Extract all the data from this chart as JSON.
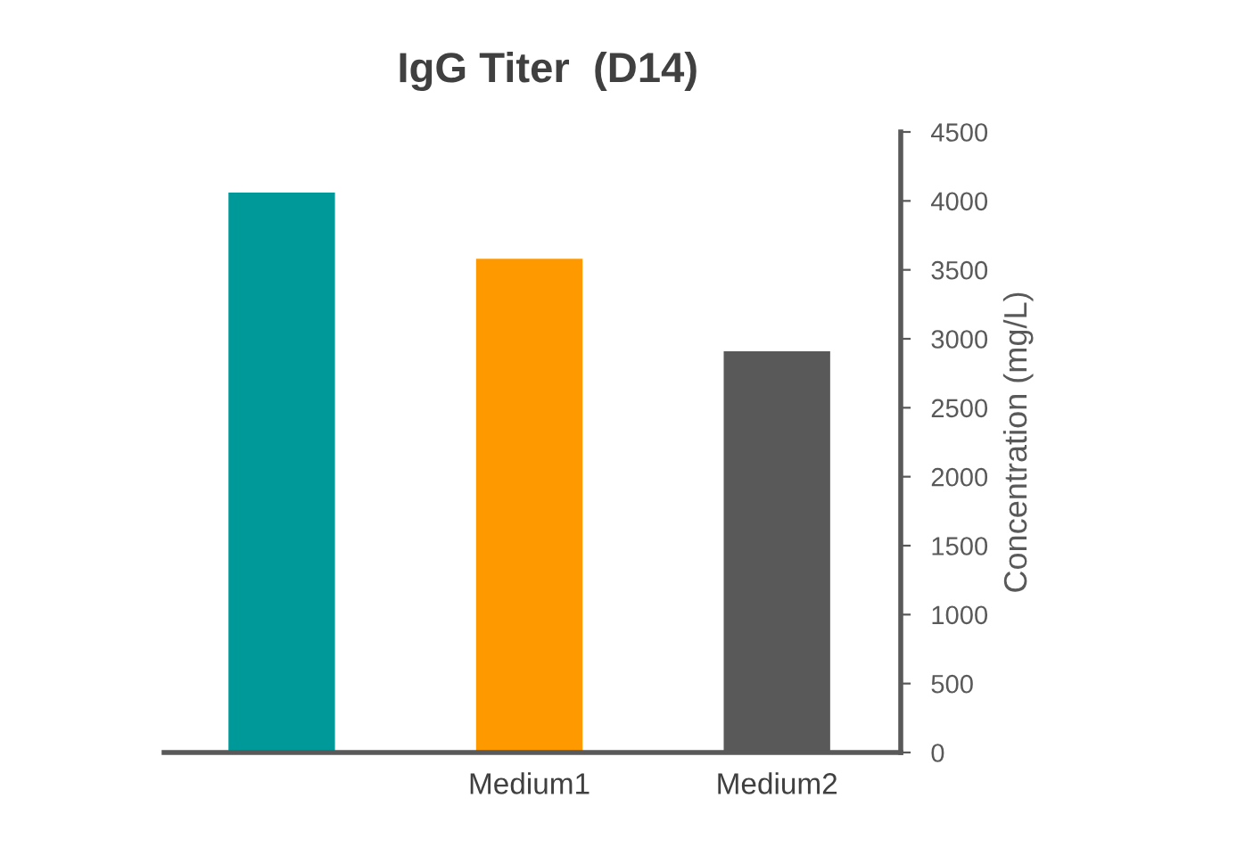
{
  "chart_data": {
    "type": "bar",
    "title": "IgG Titer  (D14)",
    "ylabel": "Concentration (mg/L)",
    "categories": [
      null,
      "Medium1",
      "Medium2"
    ],
    "values": [
      4060,
      3580,
      2910
    ],
    "colors": [
      "#009999",
      "#ff9900",
      "#595959"
    ],
    "ylim": [
      0,
      4500
    ],
    "yticks": [
      0,
      500,
      1000,
      1500,
      2000,
      2500,
      3000,
      3500,
      4000,
      4500
    ],
    "grid": false,
    "legend": false
  }
}
